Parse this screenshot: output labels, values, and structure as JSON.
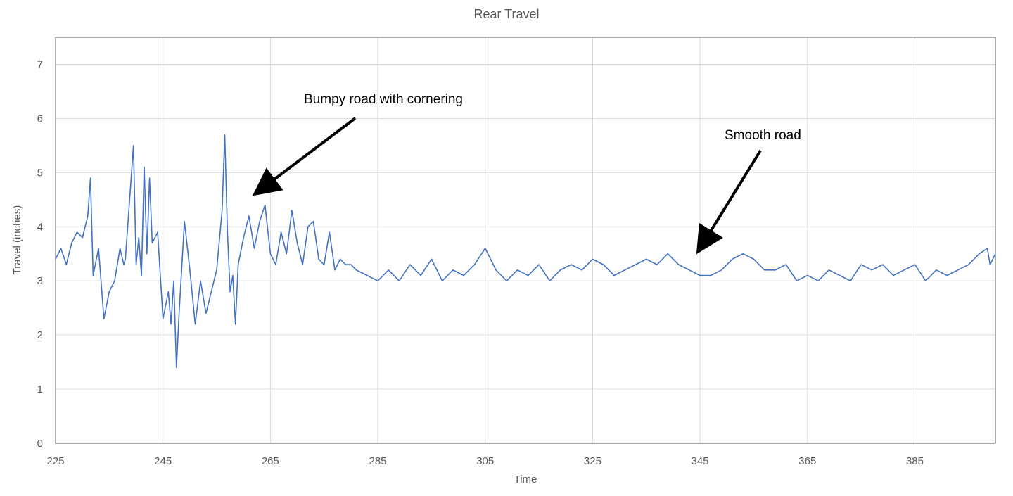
{
  "chart_data": {
    "type": "line",
    "title": "Rear Travel",
    "xlabel": "Time",
    "ylabel": "Travel (inches)",
    "xlim": [
      225,
      400
    ],
    "ylim": [
      0,
      7.5
    ],
    "x_ticks": [
      225,
      245,
      265,
      285,
      305,
      325,
      345,
      365,
      385
    ],
    "y_ticks": [
      0,
      1,
      2,
      3,
      4,
      5,
      6,
      7
    ],
    "grid": true,
    "line_color": "#4472C4",
    "series": [
      {
        "x": [
          225,
          226,
          227,
          228,
          229,
          230,
          231,
          231.5,
          232,
          233,
          234,
          235,
          236,
          237,
          237.7,
          238,
          239,
          239.5,
          240,
          240.5,
          241,
          241.5,
          242,
          242.5,
          243,
          244,
          245,
          246,
          246.5,
          247,
          247.5,
          248,
          249,
          250,
          251,
          252,
          253,
          254,
          255,
          256,
          256.5,
          257,
          257.5,
          258,
          258.5,
          259,
          260,
          261,
          262,
          263,
          264,
          265,
          266,
          267,
          268,
          269,
          270,
          271,
          272,
          273,
          274,
          275,
          276,
          277,
          278,
          279,
          280,
          281,
          283,
          285,
          287,
          289,
          291,
          293,
          295,
          297,
          299,
          301,
          303,
          305,
          307,
          309,
          311,
          313,
          315,
          317,
          319,
          321,
          323,
          325,
          327,
          329,
          331,
          333,
          335,
          337,
          339,
          341,
          343,
          345,
          347,
          349,
          351,
          353,
          355,
          357,
          359,
          361,
          363,
          365,
          367,
          369,
          371,
          373,
          375,
          377,
          379,
          381,
          383,
          385,
          387,
          389,
          391,
          393,
          395,
          397,
          398.5,
          399,
          400
        ],
        "y": [
          3.4,
          3.6,
          3.3,
          3.7,
          3.9,
          3.8,
          4.2,
          4.9,
          3.1,
          3.6,
          2.3,
          2.8,
          3.0,
          3.6,
          3.3,
          3.4,
          4.8,
          5.5,
          3.3,
          3.8,
          3.1,
          5.1,
          3.5,
          4.9,
          3.7,
          3.9,
          2.3,
          2.8,
          2.2,
          3.0,
          1.4,
          2.4,
          4.1,
          3.2,
          2.2,
          3.0,
          2.4,
          2.8,
          3.2,
          4.3,
          5.7,
          3.9,
          2.8,
          3.1,
          2.2,
          3.3,
          3.8,
          4.2,
          3.6,
          4.1,
          4.4,
          3.5,
          3.3,
          3.9,
          3.5,
          4.3,
          3.7,
          3.3,
          4.0,
          4.1,
          3.4,
          3.3,
          3.9,
          3.2,
          3.4,
          3.3,
          3.3,
          3.2,
          3.1,
          3.0,
          3.2,
          3.0,
          3.3,
          3.1,
          3.4,
          3.0,
          3.2,
          3.1,
          3.3,
          3.6,
          3.2,
          3.0,
          3.2,
          3.1,
          3.3,
          3.0,
          3.2,
          3.3,
          3.2,
          3.4,
          3.3,
          3.1,
          3.2,
          3.3,
          3.4,
          3.3,
          3.5,
          3.3,
          3.2,
          3.1,
          3.1,
          3.2,
          3.4,
          3.5,
          3.4,
          3.2,
          3.2,
          3.3,
          3.0,
          3.1,
          3.0,
          3.2,
          3.1,
          3.0,
          3.3,
          3.2,
          3.3,
          3.1,
          3.2,
          3.3,
          3.0,
          3.2,
          3.1,
          3.2,
          3.3,
          3.5,
          3.6,
          3.3,
          3.5
        ]
      }
    ],
    "annotations": [
      {
        "text": "Bumpy road with cornering",
        "target_x": 262,
        "target_y": 4.6
      },
      {
        "text": "Smooth road",
        "target_x": 344,
        "target_y": 3.5
      }
    ]
  }
}
